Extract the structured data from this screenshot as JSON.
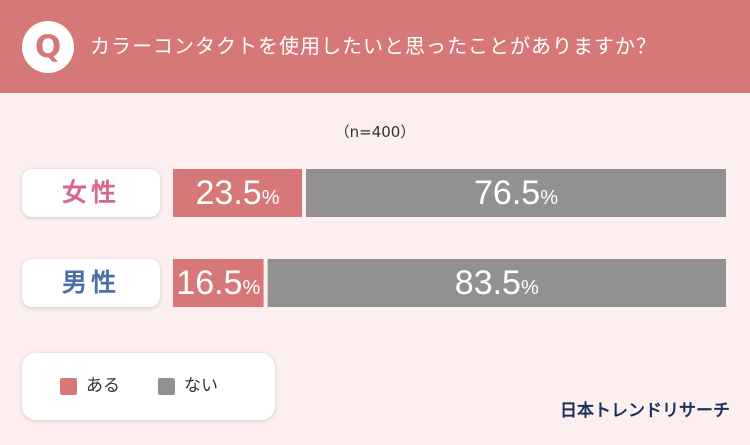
{
  "header": {
    "badge": "Q",
    "question": "カラーコンタクトを使用したいと思ったことがありますか？"
  },
  "sample_note": "（n=400）",
  "colors": {
    "yes": "#d67878",
    "no": "#929091",
    "female_label": "#d9668a",
    "male_label": "#4d6fa8"
  },
  "chart_data": {
    "type": "bar",
    "orientation": "horizontal-stacked-100",
    "categories": [
      "女性",
      "男性"
    ],
    "series": [
      {
        "name": "ある",
        "values": [
          23.5,
          16.5
        ]
      },
      {
        "name": "ない",
        "values": [
          76.5,
          83.5
        ]
      }
    ],
    "unit": "%",
    "xlim": [
      0,
      100
    ],
    "legend_position": "bottom-left"
  },
  "legend": {
    "items": [
      "ある",
      "ない"
    ]
  },
  "brand": "日本トレンドリサーチ"
}
